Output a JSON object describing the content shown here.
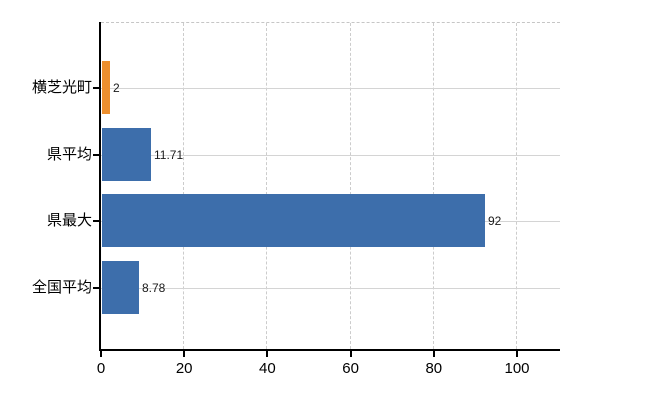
{
  "chart_data": {
    "type": "bar",
    "orientation": "horizontal",
    "title": "",
    "xlabel": "",
    "ylabel": "",
    "categories": [
      "横芝光町",
      "県平均",
      "県最大",
      "全国平均"
    ],
    "values": [
      2,
      11.71,
      92,
      8.78
    ],
    "value_labels": [
      "2",
      "11.71",
      "92",
      "8.78"
    ],
    "series": [
      {
        "name": "",
        "values": [
          2,
          11.71,
          92,
          8.78
        ]
      }
    ],
    "bar_colors": [
      "#ed8f2e",
      "#3d6eab",
      "#3d6eab",
      "#3d6eab"
    ],
    "x_ticks": [
      {
        "value": 0,
        "label": "0"
      },
      {
        "value": 20,
        "label": "20"
      },
      {
        "value": 40,
        "label": "40"
      },
      {
        "value": 60,
        "label": "60"
      },
      {
        "value": 80,
        "label": "80"
      },
      {
        "value": 100,
        "label": "100"
      }
    ],
    "xlim": [
      0,
      110.3
    ],
    "grid": true,
    "grid_vertical_style": "dashed",
    "grid_horizontal_style": "solid",
    "legend_position": "none"
  },
  "colors": {
    "background": "#ffffff",
    "bar_blue": "#3d6eab",
    "bar_orange": "#ed8f2e",
    "axis": "#000000",
    "gridline": "#d2d2d2",
    "text": "#000000"
  }
}
